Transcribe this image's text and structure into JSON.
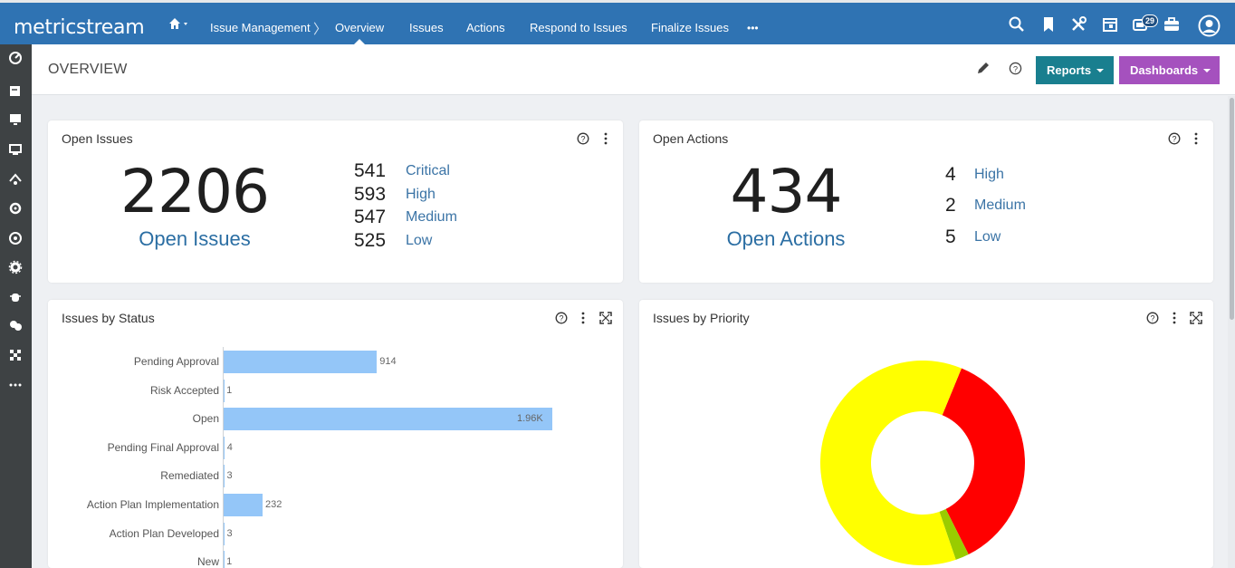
{
  "app": {
    "logo": "metricstream"
  },
  "nav": {
    "items": [
      "Issue Management",
      "Overview",
      "Issues",
      "Actions",
      "Respond to Issues",
      "Finalize Issues"
    ],
    "more": "•••",
    "notification_count": "29"
  },
  "page": {
    "title": "OVERVIEW"
  },
  "toolbar": {
    "reports_label": "Reports",
    "dashboards_label": "Dashboards"
  },
  "open_issues": {
    "title": "Open Issues",
    "total": "2206",
    "label": "Open Issues",
    "breakdown": [
      {
        "count": "541",
        "label": "Critical"
      },
      {
        "count": "593",
        "label": "High"
      },
      {
        "count": "547",
        "label": "Medium"
      },
      {
        "count": "525",
        "label": "Low"
      }
    ]
  },
  "open_actions": {
    "title": "Open Actions",
    "total": "434",
    "label": "Open Actions",
    "breakdown": [
      {
        "count": "4",
        "label": "High"
      },
      {
        "count": "2",
        "label": "Medium"
      },
      {
        "count": "5",
        "label": "Low"
      }
    ]
  },
  "issues_by_status": {
    "title": "Issues by Status",
    "chart_data": {
      "type": "bar",
      "orientation": "horizontal",
      "categories": [
        "Pending Approval",
        "Risk Accepted",
        "Open",
        "Pending Final Approval",
        "Remediated",
        "Action Plan Implementation",
        "Action Plan Developed",
        "New"
      ],
      "values": [
        914,
        1,
        1960,
        4,
        3,
        232,
        3,
        1
      ],
      "value_labels": [
        "914",
        "1",
        "1.96K",
        "4",
        "3",
        "232",
        "3",
        "1"
      ],
      "xlim": [
        0,
        1960
      ],
      "color": "#94c6f8"
    }
  },
  "issues_by_priority": {
    "title": "Issues by Priority",
    "chart_data": {
      "type": "pie",
      "style": "donut",
      "values": [
        593,
        35,
        1002
      ],
      "colors": [
        "#ff0000",
        "#99cc00",
        "#ffff00"
      ]
    }
  }
}
